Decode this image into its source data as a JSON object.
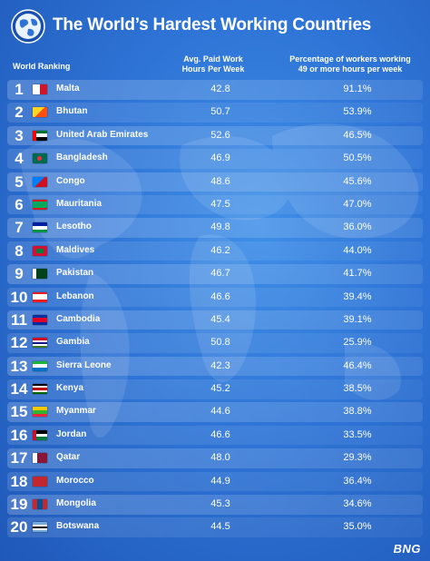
{
  "title": "The World’s Hardest Working Countries",
  "headers": {
    "rank": "World Ranking",
    "hours_line1": "Avg. Paid  Work",
    "hours_line2": "Hours Per Week",
    "pct_line1": "Percentage of workers working",
    "pct_line2": "49 or more hours per week"
  },
  "logo": "BNG",
  "chart_data": {
    "type": "table",
    "title": "The World’s Hardest Working Countries",
    "columns": [
      "World Ranking",
      "Avg. Paid  Work Hours Per Week",
      "Percentage of workers working 49 or more hours per week"
    ],
    "rows": [
      {
        "rank": "1",
        "country": "Malta",
        "hours": "42.8",
        "pct": "91.1%",
        "flag": [
          "#ffffff",
          "#cf142b"
        ],
        "flag_dir": "v"
      },
      {
        "rank": "2",
        "country": "Bhutan",
        "hours": "50.7",
        "pct": "53.9%",
        "flag": [
          "#ffd520",
          "#ff4e12"
        ],
        "flag_dir": "d"
      },
      {
        "rank": "3",
        "country": "United Arab Emirates",
        "hours": "52.6",
        "pct": "46.5%",
        "flag": [
          "#00732f",
          "#ffffff",
          "#000000"
        ],
        "flag_dir": "h",
        "flag_hoist": "#ff0000"
      },
      {
        "rank": "4",
        "country": "Bangladesh",
        "hours": "46.9",
        "pct": "50.5%",
        "flag": [
          "#006a4e"
        ],
        "flag_dir": "h",
        "flag_disc": "#f42a41"
      },
      {
        "rank": "5",
        "country": "Congo",
        "hours": "48.6",
        "pct": "45.6%",
        "flag": [
          "#007fff",
          "#ce1021"
        ],
        "flag_dir": "d"
      },
      {
        "rank": "6",
        "country": "Mauritania",
        "hours": "47.5",
        "pct": "47.0%",
        "flag": [
          "#d01c1f",
          "#00a95c",
          "#00a95c",
          "#00a95c",
          "#d01c1f"
        ],
        "flag_dir": "h"
      },
      {
        "rank": "7",
        "country": "Lesotho",
        "hours": "49.8",
        "pct": "36.0%",
        "flag": [
          "#00209f",
          "#ffffff",
          "#009543"
        ],
        "flag_dir": "h"
      },
      {
        "rank": "8",
        "country": "Maldives",
        "hours": "46.2",
        "pct": "44.0%",
        "flag": [
          "#d21034"
        ],
        "flag_dir": "h",
        "flag_inner": "#007e3a"
      },
      {
        "rank": "9",
        "country": "Pakistan",
        "hours": "46.7",
        "pct": "41.7%",
        "flag": [
          "#ffffff",
          "#01411c",
          "#01411c",
          "#01411c"
        ],
        "flag_dir": "v"
      },
      {
        "rank": "10",
        "country": "Lebanon",
        "hours": "46.6",
        "pct": "39.4%",
        "flag": [
          "#ed1c24",
          "#ffffff",
          "#ffffff",
          "#ed1c24"
        ],
        "flag_dir": "h"
      },
      {
        "rank": "11",
        "country": "Cambodia",
        "hours": "45.4",
        "pct": "39.1%",
        "flag": [
          "#032ea1",
          "#e00025",
          "#e00025",
          "#032ea1"
        ],
        "flag_dir": "h"
      },
      {
        "rank": "12",
        "country": "Gambia",
        "hours": "50.8",
        "pct": "25.9%",
        "flag": [
          "#ce1126",
          "#ffffff",
          "#0c1c8c",
          "#ffffff",
          "#3a7728"
        ],
        "flag_dir": "h"
      },
      {
        "rank": "13",
        "country": "Sierra Leone",
        "hours": "42.3",
        "pct": "46.4%",
        "flag": [
          "#1eb53a",
          "#ffffff",
          "#0072c6"
        ],
        "flag_dir": "h"
      },
      {
        "rank": "14",
        "country": "Kenya",
        "hours": "45.2",
        "pct": "38.5%",
        "flag": [
          "#000000",
          "#ffffff",
          "#bb0000",
          "#ffffff",
          "#006600"
        ],
        "flag_dir": "h"
      },
      {
        "rank": "15",
        "country": "Myanmar",
        "hours": "44.6",
        "pct": "38.8%",
        "flag": [
          "#fecb00",
          "#34b233",
          "#ea2839"
        ],
        "flag_dir": "h"
      },
      {
        "rank": "16",
        "country": "Jordan",
        "hours": "46.6",
        "pct": "33.5%",
        "flag": [
          "#000000",
          "#ffffff",
          "#007a3d"
        ],
        "flag_dir": "h",
        "flag_hoist": "#ce1126"
      },
      {
        "rank": "17",
        "country": "Qatar",
        "hours": "48.0",
        "pct": "29.3%",
        "flag": [
          "#ffffff",
          "#8a1538",
          "#8a1538"
        ],
        "flag_dir": "v"
      },
      {
        "rank": "18",
        "country": "Morocco",
        "hours": "44.9",
        "pct": "36.4%",
        "flag": [
          "#c1272d"
        ],
        "flag_dir": "h"
      },
      {
        "rank": "19",
        "country": "Mongolia",
        "hours": "45.3",
        "pct": "34.6%",
        "flag": [
          "#c4272f",
          "#015197",
          "#c4272f"
        ],
        "flag_dir": "v"
      },
      {
        "rank": "20",
        "country": "Botswana",
        "hours": "44.5",
        "pct": "35.0%",
        "flag": [
          "#75aadb",
          "#ffffff",
          "#000000",
          "#ffffff",
          "#75aadb"
        ],
        "flag_dir": "h"
      }
    ]
  }
}
